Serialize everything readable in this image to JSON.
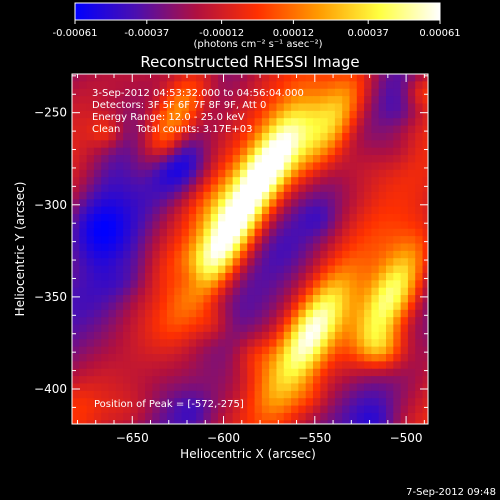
{
  "chart_data": {
    "type": "heatmap",
    "title": "Reconstructed RHESSI Image",
    "xlabel": "Heliocentric X (arcsec)",
    "ylabel": "Heliocentric Y (arcsec)",
    "xlim": [
      -683,
      -488
    ],
    "ylim": [
      -419,
      -229
    ],
    "x_ticks": [
      -650,
      -600,
      -550,
      -500
    ],
    "y_ticks": [
      -250,
      -300,
      -350,
      -400
    ],
    "x_tick_labels": [
      "−650",
      "−600",
      "−550",
      "−500"
    ],
    "y_tick_labels": [
      "−250",
      "−300",
      "−350",
      "−400"
    ],
    "colorbar": {
      "range": [
        -0.00061,
        0.00061
      ],
      "tick_values": [
        -0.00061,
        -0.00037,
        -0.00012,
        0.00012,
        0.00037,
        0.00061
      ],
      "tick_labels": [
        "-0.00061",
        "-0.00037",
        "-0.00012",
        "0.00012",
        "0.00037",
        "0.00061"
      ],
      "unit_text": "(photons cm⁻² s⁻¹ asec⁻²)",
      "colors": [
        "#0000ff",
        "#4b0fb0",
        "#b01040",
        "#ff3000",
        "#ff9a00",
        "#ffff40",
        "#ffffff"
      ]
    },
    "annotations": [
      "3-Sep-2012 04:53:32.000 to 04:56:04.000",
      "Detectors: 3F 5F 6F 7F 8F 9F, Att 0",
      "Energy Range: 12.0 - 25.0 keV",
      "Clean     Total counts: 3.17E+03"
    ],
    "peak_label": "Position of Peak = [-572,-275]",
    "peak": [
      -572,
      -275
    ],
    "bright_sources": [
      {
        "x": -572,
        "y": -275,
        "intensity": 1.0
      },
      {
        "x": -600,
        "y": -322,
        "intensity": 0.92
      },
      {
        "x": -508,
        "y": -350,
        "intensity": 0.9
      },
      {
        "x": -552,
        "y": -370,
        "intensity": 0.85
      },
      {
        "x": -628,
        "y": -255,
        "intensity": 0.8
      },
      {
        "x": -540,
        "y": -255,
        "intensity": 0.8
      }
    ],
    "grid": false
  },
  "footer": {
    "timestamp": "7-Sep-2012 09:48"
  }
}
